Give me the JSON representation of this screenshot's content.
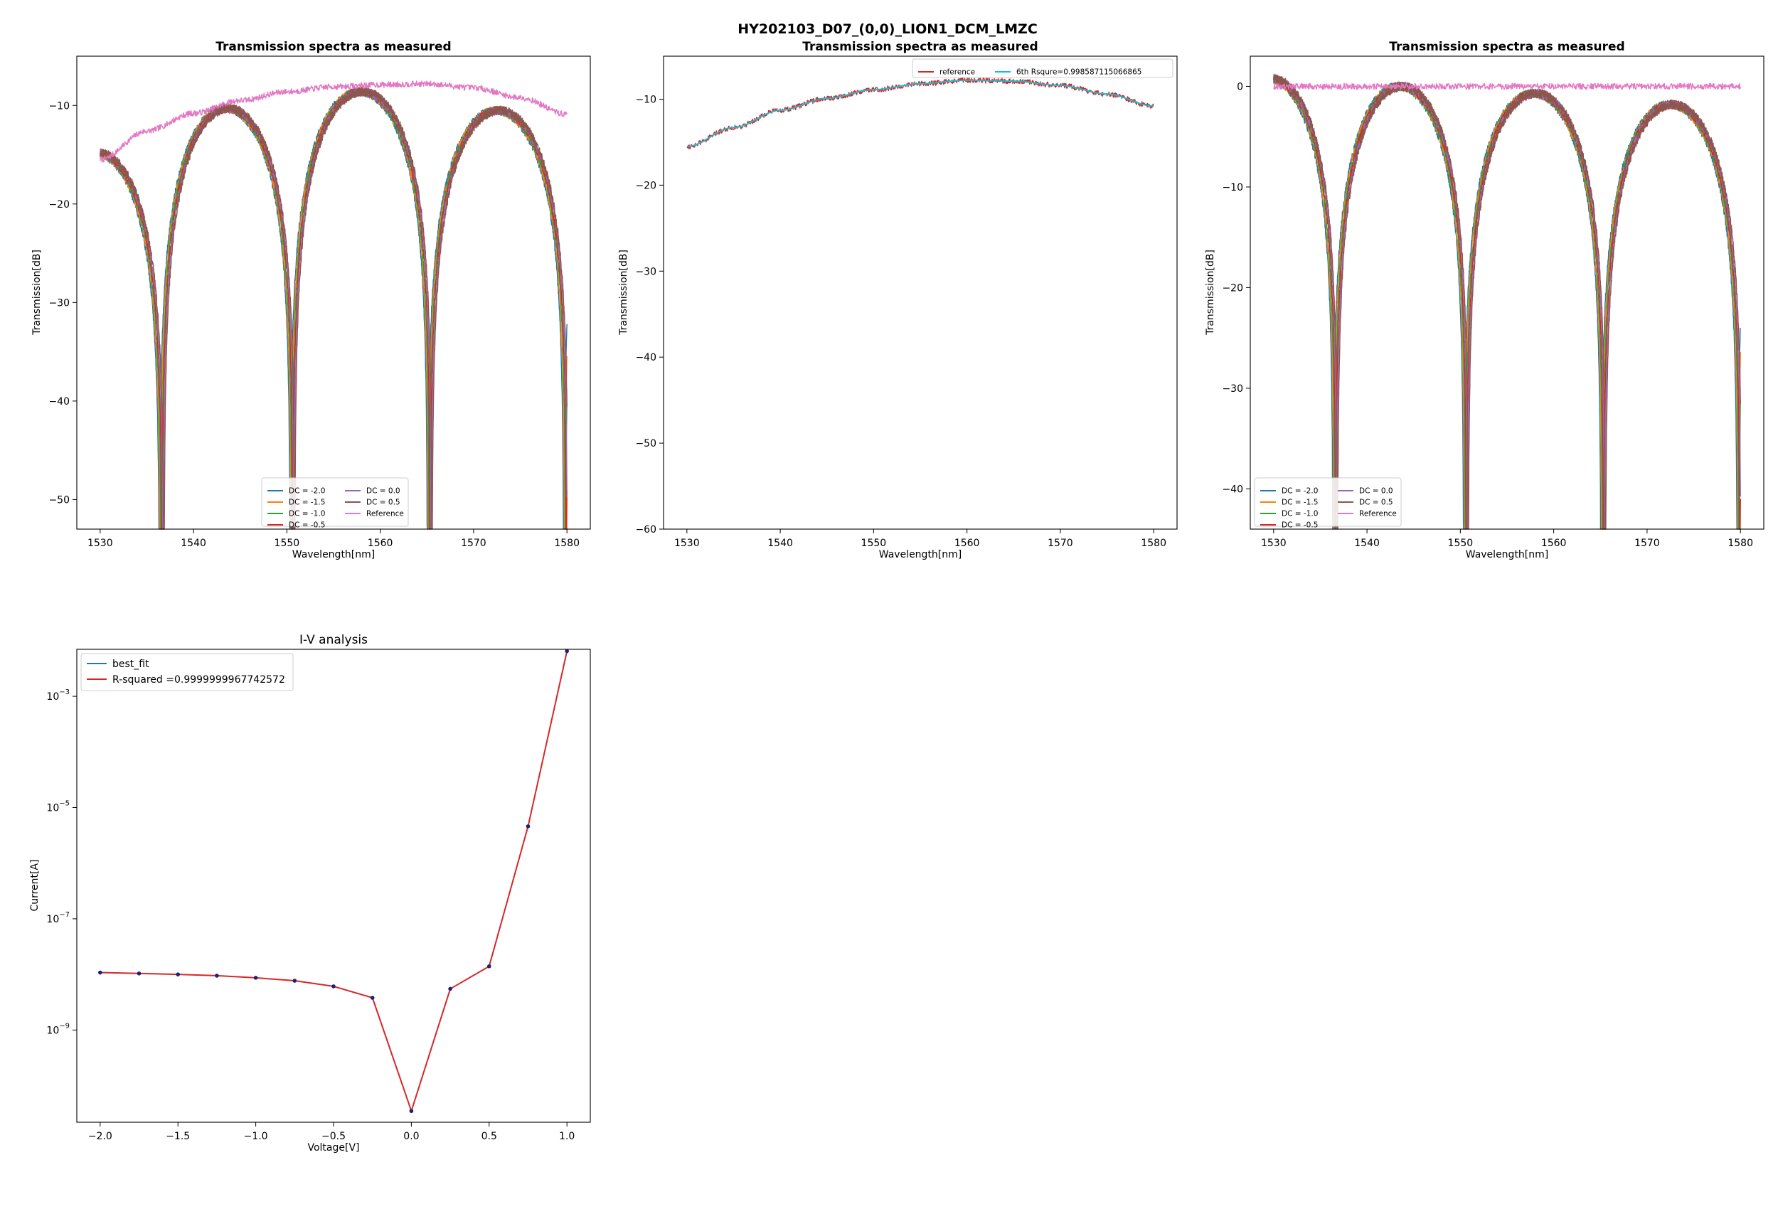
{
  "suptitle": "HY202103_D07_(0,0)_LION1_DCM_LMZC",
  "colors": {
    "dc_m2.0": "#1f77b4",
    "dc_m1.5": "#ff7f0e",
    "dc_m1.0": "#2ca02c",
    "dc_m0.5": "#d62728",
    "dc_0.0": "#9467bd",
    "dc_0.5": "#8c564b",
    "reference": "#e377c2",
    "fit": "#17becf",
    "iv_points": "#1f1f7a"
  },
  "chart_data": [
    {
      "id": "measured",
      "type": "line",
      "title": "Transmission spectra as measured",
      "xlabel": "Wavelength[nm]",
      "ylabel": "Transmission[dB]",
      "xlim": [
        1527.5,
        1582.5
      ],
      "ylim": [
        -53,
        -5
      ],
      "xticks": [
        1530,
        1540,
        1550,
        1560,
        1570,
        1580
      ],
      "yticks": [
        -10,
        -20,
        -30,
        -40,
        -50
      ],
      "grid": false,
      "legend": {
        "placement": "lower-center",
        "ncol": 2
      },
      "series": [
        {
          "name": "DC = -2.0",
          "color_key": "dc_m2.0",
          "offset": -0.25
        },
        {
          "name": "DC = -1.5",
          "color_key": "dc_m1.5",
          "offset": -0.15
        },
        {
          "name": "DC = -1.0",
          "color_key": "dc_m1.0",
          "offset": -0.05
        },
        {
          "name": "DC = -0.5",
          "color_key": "dc_m0.5",
          "offset": 0.05
        },
        {
          "name": "DC = 0.0",
          "color_key": "dc_0.0",
          "offset": 0.15
        },
        {
          "name": "DC = 0.5",
          "color_key": "dc_0.5",
          "offset": 0.25
        },
        {
          "name": "Reference",
          "color_key": "reference"
        }
      ],
      "mzi_nulls": [
        1536.6,
        1550.6,
        1565.3,
        1579.9
      ],
      "mzi_peaks": [
        [
          1530.5,
          -14.8
        ],
        [
          1544.0,
          -10.3
        ],
        [
          1558.0,
          -8.6
        ],
        [
          1572.0,
          -10.5
        ]
      ],
      "reference_curve": [
        [
          1530,
          -15.5
        ],
        [
          1535,
          -12.6
        ],
        [
          1540,
          -10.8
        ],
        [
          1545,
          -9.5
        ],
        [
          1550,
          -8.6
        ],
        [
          1555,
          -8.1
        ],
        [
          1560,
          -7.9
        ],
        [
          1565,
          -7.8
        ],
        [
          1570,
          -8.2
        ],
        [
          1575,
          -9.2
        ],
        [
          1580,
          -10.9
        ]
      ]
    },
    {
      "id": "reference",
      "type": "line",
      "title": "Transmission spectra as measured",
      "xlabel": "Wavelength[nm]",
      "ylabel": "Transmission[dB]",
      "xlim": [
        1527.5,
        1582.5
      ],
      "ylim": [
        -60,
        -5
      ],
      "xticks": [
        1530,
        1540,
        1550,
        1560,
        1570,
        1580
      ],
      "yticks": [
        -10,
        -20,
        -30,
        -40,
        -50,
        -60
      ],
      "grid": false,
      "legend": {
        "placement": "upper-right",
        "ncol": 2
      },
      "series": [
        {
          "name": "reference",
          "color_key": "dc_m0.5"
        },
        {
          "name": "6th Rsqure=0.998587115066865",
          "color_key": "fit"
        }
      ],
      "reference_curve": [
        [
          1530,
          -15.5
        ],
        [
          1535,
          -13.3
        ],
        [
          1540,
          -11.3
        ],
        [
          1545,
          -9.9
        ],
        [
          1550,
          -8.9
        ],
        [
          1555,
          -8.2
        ],
        [
          1560,
          -7.8
        ],
        [
          1565,
          -7.9
        ],
        [
          1570,
          -8.4
        ],
        [
          1575,
          -9.4
        ],
        [
          1580,
          -10.8
        ]
      ]
    },
    {
      "id": "flattened",
      "type": "line",
      "title": "Transmission spectra as measured",
      "xlabel": "Wavelength[nm]",
      "ylabel": "Transmission[dB]",
      "xlim": [
        1527.5,
        1582.5
      ],
      "ylim": [
        -44,
        3
      ],
      "xticks": [
        1530,
        1540,
        1550,
        1560,
        1570,
        1580
      ],
      "yticks": [
        0,
        -10,
        -20,
        -30,
        -40
      ],
      "grid": false,
      "legend": {
        "placement": "lower-left",
        "ncol": 2
      },
      "series": [
        {
          "name": "DC = -2.0",
          "color_key": "dc_m2.0",
          "offset": -0.25
        },
        {
          "name": "DC = -1.5",
          "color_key": "dc_m1.5",
          "offset": -0.15
        },
        {
          "name": "DC = -1.0",
          "color_key": "dc_m1.0",
          "offset": -0.05
        },
        {
          "name": "DC = -0.5",
          "color_key": "dc_m0.5",
          "offset": 0.05
        },
        {
          "name": "DC = 0.0",
          "color_key": "dc_0.0",
          "offset": 0.15
        },
        {
          "name": "DC = 0.5",
          "color_key": "dc_0.5",
          "offset": 0.25
        },
        {
          "name": "Reference",
          "color_key": "reference"
        }
      ],
      "mzi_nulls": [
        1536.6,
        1550.6,
        1565.3,
        1579.9
      ],
      "mzi_peaks": [
        [
          1530.5,
          0.8
        ],
        [
          1543.3,
          0.0
        ],
        [
          1558.2,
          -0.7
        ],
        [
          1572.5,
          -1.8
        ]
      ],
      "reference_curve": [
        [
          1530,
          0.0
        ],
        [
          1580,
          0.0
        ]
      ]
    },
    {
      "id": "iv",
      "type": "scatter",
      "title": "I-V analysis",
      "xlabel": "Voltage[V]",
      "ylabel": "Current[A]",
      "yscale": "log",
      "xlim": [
        -2.15,
        1.15
      ],
      "ylim": [
        2.2e-11,
        0.007
      ],
      "xticks": [
        -2.0,
        -1.5,
        -1.0,
        -0.5,
        0.0,
        0.5,
        1.0
      ],
      "xtick_labels": [
        "−2.0",
        "−1.5",
        "−1.0",
        "−0.5",
        "0.0",
        "0.5",
        "1.0"
      ],
      "ytick_exponents": [
        -3,
        -5,
        -7,
        -9
      ],
      "grid": false,
      "legend": {
        "placement": "upper-left"
      },
      "series": [
        {
          "name": "best_fit",
          "color_key": "dc_m2.0"
        },
        {
          "name": "R-squared =0.9999999967742572",
          "color_key": "dc_m0.5"
        }
      ],
      "x": [
        -2.0,
        -1.75,
        -1.5,
        -1.25,
        -1.0,
        -0.75,
        -0.5,
        -0.25,
        0.0,
        0.25,
        0.5,
        0.75,
        1.0
      ],
      "y": [
        1.08e-08,
        1.04e-08,
        1e-08,
        9.5e-09,
        8.7e-09,
        7.7e-09,
        6.1e-09,
        3.8e-09,
        3.5e-11,
        5.5e-09,
        1.4e-08,
        4.6e-06,
        0.0065
      ]
    }
  ]
}
